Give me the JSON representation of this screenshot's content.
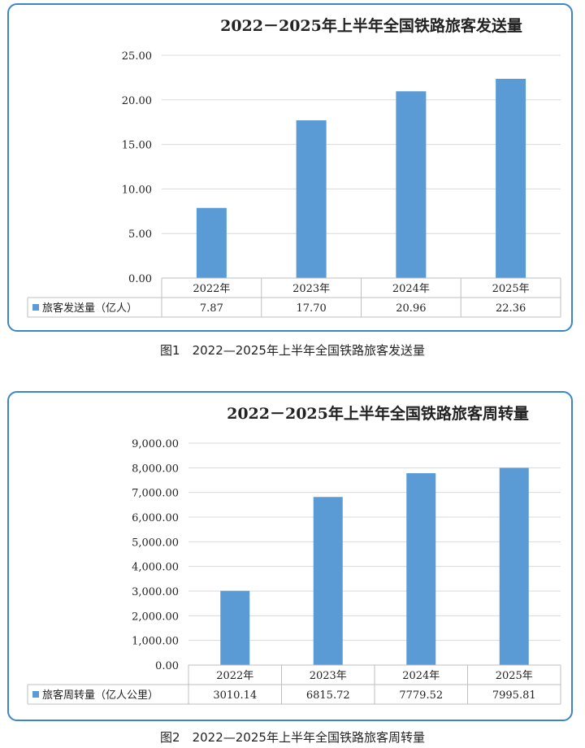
{
  "chart_data": [
    {
      "type": "bar",
      "title": "2022－2025年上半年全国铁路旅客发送量",
      "categories": [
        "2022年",
        "2023年",
        "2024年",
        "2025年"
      ],
      "series": [
        {
          "name": "旅客发送量（亿人）",
          "values": [
            7.87,
            17.7,
            20.96,
            22.36
          ]
        }
      ],
      "value_labels": [
        "7.87",
        "17.70",
        "20.96",
        "22.36"
      ],
      "yticks": [
        "0.00",
        "5.00",
        "10.00",
        "15.00",
        "20.00",
        "25.00"
      ],
      "ylim": [
        0,
        25
      ],
      "grid": true,
      "legend": "data-table-left",
      "caption": "图1　2022—2025年上半年全国铁路旅客发送量",
      "color": "#5b9bd5"
    },
    {
      "type": "bar",
      "title": "2022－2025年上半年全国铁路旅客周转量",
      "categories": [
        "2022年",
        "2023年",
        "2024年",
        "2025年"
      ],
      "series": [
        {
          "name": "旅客周转量（亿人公里）",
          "values": [
            3010.14,
            6815.72,
            7779.52,
            7995.81
          ]
        }
      ],
      "value_labels": [
        "3010.14",
        "6815.72",
        "7779.52",
        "7995.81"
      ],
      "yticks": [
        "0.00",
        "1,000.00",
        "2,000.00",
        "3,000.00",
        "4,000.00",
        "5,000.00",
        "6,000.00",
        "7,000.00",
        "8,000.00",
        "9,000.00"
      ],
      "ylim": [
        0,
        9000
      ],
      "grid": true,
      "legend": "data-table-left",
      "caption": "图2　2022—2025年上半年全国铁路旅客周转量",
      "color": "#5b9bd5"
    }
  ]
}
